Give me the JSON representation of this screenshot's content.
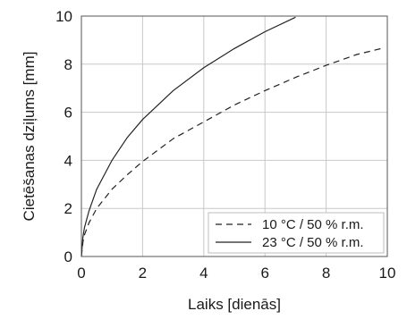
{
  "chart_data": {
    "type": "line",
    "title": "",
    "xlabel": "Laiks [dienās]",
    "ylabel": "Cietēšanas dziļums [mm]",
    "xlim": [
      0,
      10
    ],
    "ylim": [
      0,
      10
    ],
    "xticks": [
      0,
      2,
      4,
      6,
      8,
      10
    ],
    "yticks": [
      0,
      2,
      4,
      6,
      8,
      10
    ],
    "grid": true,
    "legend_position": "bottom-right",
    "series": [
      {
        "name": "10 °C / 50 % r.m.",
        "line_style": "dashed",
        "color": "#222222",
        "x": [
          0,
          0.05,
          0.1,
          0.25,
          0.5,
          1,
          1.5,
          2,
          3,
          4,
          5,
          6,
          7,
          8,
          9,
          9.8
        ],
        "y": [
          0,
          0.6,
          0.9,
          1.4,
          2.0,
          2.8,
          3.4,
          3.95,
          4.9,
          5.6,
          6.3,
          6.9,
          7.45,
          7.95,
          8.4,
          8.65
        ]
      },
      {
        "name": "23 °C / 50 % r.m.",
        "line_style": "solid",
        "color": "#222222",
        "x": [
          0,
          0.05,
          0.1,
          0.25,
          0.5,
          1,
          1.5,
          2,
          3,
          4,
          5,
          6,
          7
        ],
        "y": [
          0,
          0.8,
          1.2,
          1.9,
          2.8,
          4.0,
          4.95,
          5.7,
          6.9,
          7.85,
          8.65,
          9.35,
          9.95
        ]
      }
    ]
  }
}
